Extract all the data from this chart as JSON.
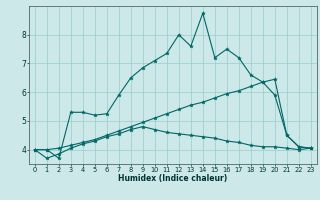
{
  "title": "",
  "xlabel": "Humidex (Indice chaleur)",
  "background_color": "#cce8e8",
  "line_color": "#006666",
  "grid_color": "#99cccc",
  "xlim": [
    -0.5,
    23.5
  ],
  "ylim": [
    3.5,
    9.0
  ],
  "xticks": [
    0,
    1,
    2,
    3,
    4,
    5,
    6,
    7,
    8,
    9,
    10,
    11,
    12,
    13,
    14,
    15,
    16,
    17,
    18,
    19,
    20,
    21,
    22,
    23
  ],
  "yticks": [
    4,
    5,
    6,
    7,
    8
  ],
  "series1_x": [
    0,
    1,
    2,
    3,
    4,
    5,
    6,
    7,
    8,
    9,
    10,
    11,
    12,
    13,
    14,
    15,
    16,
    17,
    18,
    19,
    20,
    21,
    22,
    23
  ],
  "series1_y": [
    4.0,
    4.0,
    3.7,
    5.3,
    5.3,
    5.2,
    5.25,
    5.9,
    6.5,
    6.85,
    7.1,
    7.35,
    8.0,
    7.6,
    8.75,
    7.2,
    7.5,
    7.2,
    6.6,
    6.35,
    5.9,
    4.5,
    4.1,
    4.05
  ],
  "series2_x": [
    0,
    1,
    2,
    3,
    4,
    5,
    6,
    7,
    8,
    9,
    10,
    11,
    12,
    13,
    14,
    15,
    16,
    17,
    18,
    19,
    20,
    21,
    22,
    23
  ],
  "series2_y": [
    4.0,
    3.7,
    3.85,
    4.05,
    4.2,
    4.3,
    4.45,
    4.55,
    4.7,
    4.8,
    4.7,
    4.6,
    4.55,
    4.5,
    4.45,
    4.4,
    4.3,
    4.25,
    4.15,
    4.1,
    4.1,
    4.05,
    4.0,
    4.05
  ],
  "series3_x": [
    0,
    1,
    2,
    3,
    4,
    5,
    6,
    7,
    8,
    9,
    10,
    11,
    12,
    13,
    14,
    15,
    16,
    17,
    18,
    19,
    20,
    21,
    22,
    23
  ],
  "series3_y": [
    4.0,
    4.0,
    4.05,
    4.15,
    4.25,
    4.35,
    4.5,
    4.65,
    4.8,
    4.95,
    5.1,
    5.25,
    5.4,
    5.55,
    5.65,
    5.8,
    5.95,
    6.05,
    6.2,
    6.35,
    6.45,
    4.5,
    4.1,
    4.05
  ]
}
